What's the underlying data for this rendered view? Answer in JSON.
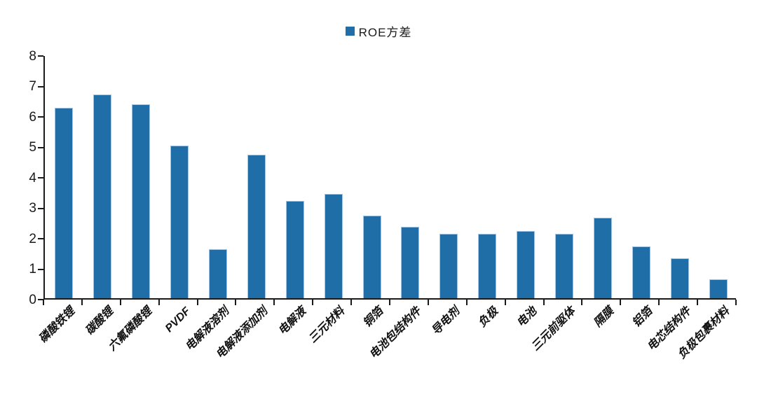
{
  "legend": {
    "label": "ROE方差",
    "marker_color": "#1f6ea7"
  },
  "chart_data": {
    "type": "bar",
    "title": "",
    "xlabel": "",
    "ylabel": "",
    "series_name": "ROE方差",
    "categories": [
      "磷酸铁锂",
      "碳酸锂",
      "六氟磷酸锂",
      "PVDF",
      "电解液溶剂",
      "电解液添加剂",
      "电解液",
      "三元材料",
      "铜箔",
      "电池包结构件",
      "导电剂",
      "负极",
      "电池",
      "三元前驱体",
      "隔膜",
      "铝箔",
      "电芯结构件",
      "负极包裹材料"
    ],
    "values": [
      6.25,
      6.7,
      6.37,
      5.02,
      1.6,
      4.72,
      3.2,
      3.42,
      2.72,
      2.35,
      2.12,
      2.12,
      2.21,
      2.11,
      2.65,
      1.7,
      1.31,
      0.62
    ],
    "ylim": [
      0,
      8
    ],
    "yticks": [
      0,
      1,
      2,
      3,
      4,
      5,
      6,
      7,
      8
    ],
    "grid": false,
    "legend_position": "top-center",
    "bar_color": "#1f6ea7",
    "bar_edge_color": "#9fc5e8",
    "axis_color": "#1a1a1a"
  }
}
